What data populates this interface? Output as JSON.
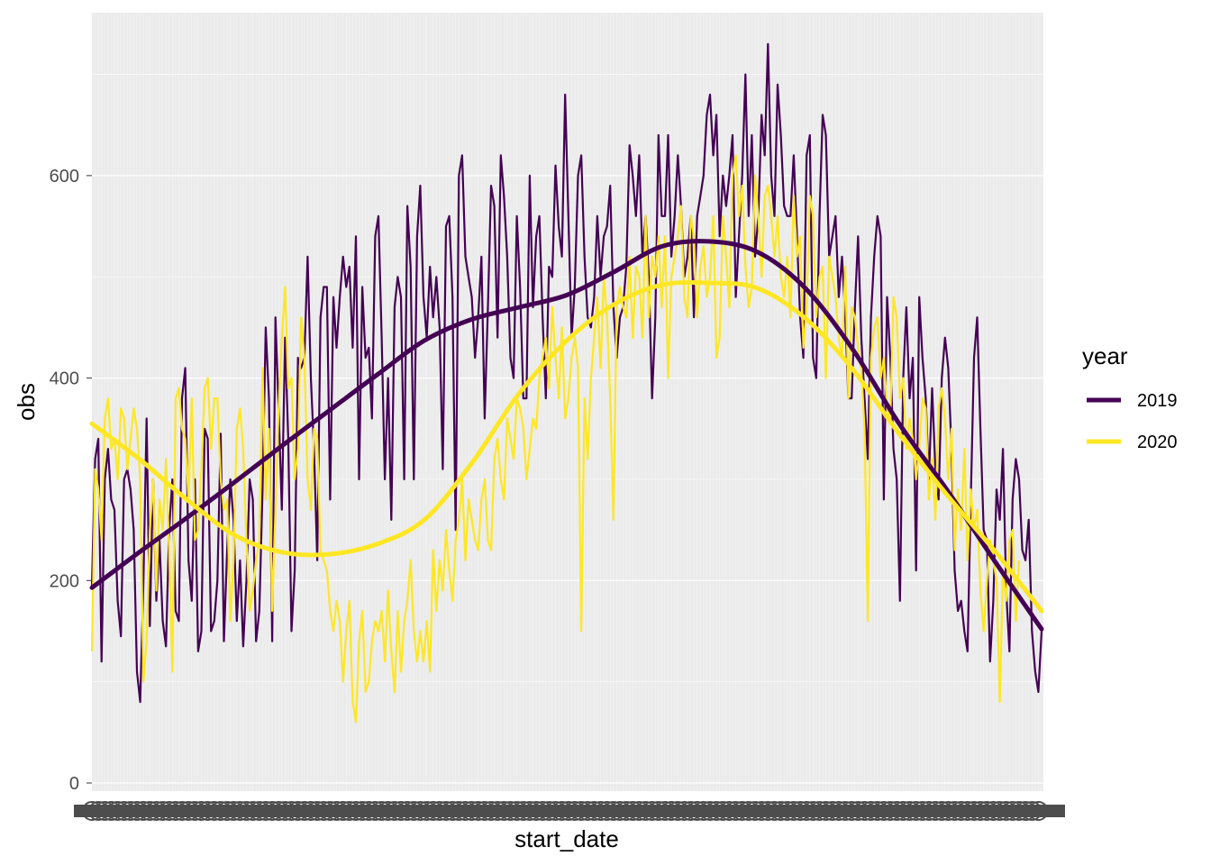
{
  "chart_data": {
    "type": "line",
    "title": "",
    "xlabel": "start_date",
    "ylabel": "obs",
    "ylim": [
      0,
      760
    ],
    "yticks": [
      0,
      200,
      400,
      600
    ],
    "grid": true,
    "legend": {
      "title": "year",
      "placement": "right"
    },
    "x_tick_labels_note": "overlapping unreadable date labels",
    "series_colors": {
      "2019": "#440154",
      "2020": "#FDE725"
    },
    "series": [
      {
        "name": "2019",
        "color": "#440154",
        "values": [
          195,
          320,
          340,
          120,
          300,
          330,
          280,
          270,
          180,
          145,
          300,
          310,
          290,
          250,
          110,
          80,
          200,
          360,
          155,
          300,
          180,
          240,
          160,
          135,
          250,
          300,
          170,
          160,
          380,
          410,
          220,
          180,
          300,
          130,
          150,
          350,
          340,
          150,
          160,
          200,
          345,
          140,
          230,
          300,
          260,
          160,
          220,
          135,
          200,
          300,
          280,
          140,
          170,
          290,
          450,
          380,
          140,
          460,
          370,
          270,
          440,
          340,
          150,
          210,
          420,
          410,
          420,
          520,
          400,
          330,
          220,
          460,
          490,
          490,
          280,
          480,
          430,
          480,
          520,
          490,
          510,
          430,
          540,
          300,
          490,
          420,
          430,
          360,
          540,
          560,
          440,
          300,
          400,
          260,
          470,
          500,
          480,
          300,
          570,
          510,
          300,
          540,
          590,
          480,
          440,
          510,
          460,
          500,
          450,
          310,
          550,
          560,
          480,
          250,
          600,
          620,
          520,
          500,
          480,
          420,
          460,
          520,
          360,
          470,
          590,
          570,
          440,
          620,
          580,
          520,
          420,
          400,
          560,
          490,
          380,
          380,
          600,
          470,
          540,
          560,
          460,
          380,
          510,
          500,
          610,
          550,
          520,
          680,
          560,
          440,
          490,
          600,
          620,
          520,
          460,
          450,
          480,
          560,
          500,
          540,
          550,
          590,
          470,
          420,
          460,
          470,
          510,
          630,
          600,
          560,
          620,
          520,
          560,
          500,
          380,
          460,
          640,
          560,
          560,
          640,
          520,
          560,
          620,
          570,
          500,
          520,
          560,
          460,
          560,
          580,
          600,
          660,
          680,
          620,
          660,
          540,
          600,
          570,
          600,
          640,
          480,
          540,
          600,
          700,
          560,
          640,
          520,
          560,
          660,
          620,
          730,
          600,
          560,
          690,
          640,
          570,
          560,
          560,
          620,
          540,
          460,
          420,
          620,
          640,
          420,
          400,
          560,
          660,
          640,
          520,
          540,
          560,
          480,
          520,
          460,
          380,
          380,
          470,
          540,
          440,
          380,
          320,
          460,
          520,
          560,
          540,
          280,
          480,
          420,
          330,
          300,
          180,
          400,
          470,
          380,
          420,
          210,
          480,
          420,
          380,
          300,
          390,
          310,
          280,
          400,
          440,
          410,
          330,
          210,
          170,
          180,
          150,
          130,
          280,
          420,
          460,
          350,
          250,
          240,
          120,
          180,
          290,
          260,
          330,
          190,
          130,
          280,
          320,
          300,
          230,
          220,
          260,
          150,
          110,
          90,
          150
        ]
      },
      {
        "name": "2020",
        "color": "#FDE725",
        "values": [
          130,
          310,
          290,
          240,
          360,
          380,
          330,
          340,
          300,
          370,
          360,
          310,
          340,
          370,
          350,
          300,
          100,
          140,
          250,
          300,
          190,
          280,
          250,
          320,
          230,
          110,
          380,
          390,
          350,
          340,
          280,
          380,
          240,
          250,
          310,
          390,
          400,
          330,
          380,
          380,
          300,
          270,
          280,
          160,
          220,
          350,
          370,
          330,
          240,
          170,
          190,
          220,
          240,
          410,
          280,
          350,
          170,
          270,
          370,
          440,
          490,
          390,
          400,
          300,
          330,
          460,
          420,
          300,
          270,
          350,
          340,
          230,
          220,
          210,
          170,
          150,
          180,
          160,
          100,
          150,
          180,
          80,
          60,
          140,
          170,
          90,
          100,
          140,
          160,
          150,
          170,
          120,
          190,
          130,
          90,
          170,
          110,
          160,
          180,
          220,
          150,
          120,
          150,
          120,
          160,
          110,
          230,
          170,
          220,
          190,
          250,
          210,
          180,
          240,
          260,
          300,
          220,
          280,
          260,
          240,
          230,
          280,
          300,
          240,
          230,
          320,
          340,
          300,
          280,
          360,
          340,
          320,
          380,
          370,
          350,
          300,
          330,
          360,
          350,
          400,
          420,
          440,
          390,
          470,
          420,
          380,
          450,
          360,
          380,
          420,
          440,
          410,
          150,
          380,
          320,
          400,
          440,
          480,
          410,
          500,
          460,
          380,
          260,
          470,
          490,
          470,
          460,
          520,
          440,
          510,
          500,
          440,
          560,
          460,
          520,
          500,
          540,
          470,
          540,
          400,
          500,
          520,
          540,
          570,
          480,
          460,
          560,
          540,
          460,
          510,
          530,
          480,
          500,
          560,
          420,
          440,
          560,
          520,
          470,
          600,
          620,
          560,
          590,
          510,
          470,
          490,
          600,
          560,
          500,
          580,
          590,
          560,
          520,
          560,
          500,
          480,
          520,
          460,
          580,
          520,
          540,
          430,
          470,
          580,
          560,
          460,
          500,
          510,
          400,
          520,
          500,
          480,
          440,
          420,
          510,
          380,
          470,
          460,
          430,
          410,
          350,
          160,
          420,
          450,
          460,
          400,
          420,
          370,
          360,
          480,
          460,
          380,
          400,
          330,
          360,
          340,
          300,
          330,
          380,
          370,
          280,
          320,
          260,
          370,
          390,
          360,
          300,
          350,
          230,
          290,
          250,
          330,
          220,
          290,
          250,
          270,
          190,
          150,
          200,
          240,
          220,
          200,
          80,
          210,
          180,
          240,
          250,
          160,
          220
        ]
      }
    ],
    "smooth": [
      {
        "name": "2019",
        "fractions": [
          0,
          0.05,
          0.1,
          0.15,
          0.2,
          0.25,
          0.3,
          0.35,
          0.4,
          0.45,
          0.5,
          0.55,
          0.6,
          0.65,
          0.7,
          0.75,
          0.8,
          0.85,
          0.9,
          0.95,
          1.0
        ],
        "values": [
          193,
          228,
          262,
          297,
          333,
          368,
          403,
          437,
          458,
          470,
          482,
          505,
          530,
          535,
          525,
          490,
          430,
          355,
          290,
          220,
          152
        ]
      },
      {
        "name": "2020",
        "fractions": [
          0,
          0.05,
          0.1,
          0.15,
          0.2,
          0.25,
          0.3,
          0.35,
          0.4,
          0.45,
          0.5,
          0.55,
          0.6,
          0.65,
          0.7,
          0.75,
          0.8,
          0.85,
          0.9,
          0.95,
          1.0
        ],
        "values": [
          355,
          320,
          280,
          245,
          228,
          226,
          236,
          260,
          316,
          385,
          437,
          473,
          492,
          494,
          489,
          460,
          410,
          345,
          285,
          230,
          170
        ]
      }
    ]
  }
}
